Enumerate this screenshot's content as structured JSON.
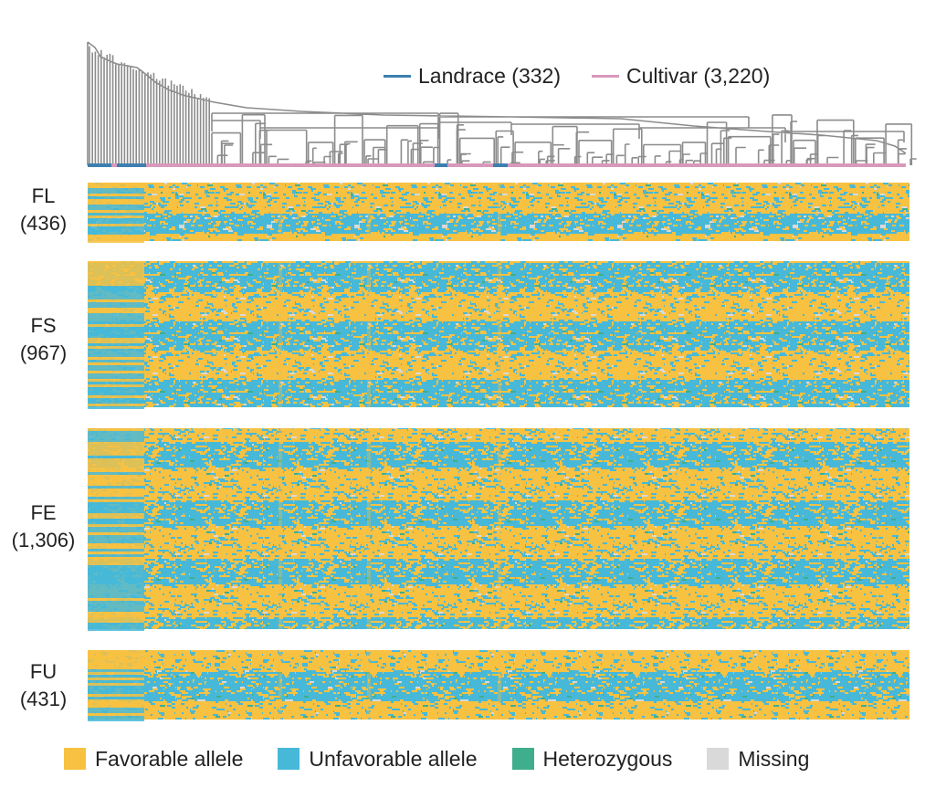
{
  "chart_data": {
    "type": "heatmap",
    "title": "",
    "xlabel": "",
    "ylabel": "",
    "dendrogram": {
      "groups": [
        {
          "name": "Landrace",
          "count": 332,
          "label": "Landrace (332)",
          "color": "#3d7fb0"
        },
        {
          "name": "Cultivar",
          "count": 3220,
          "label": "Cultivar (3,220)",
          "color": "#d899bb"
        }
      ],
      "branch_color": "#8c8c8c"
    },
    "panels": [
      {
        "name": "FL",
        "count": 436,
        "label_line1": "FL",
        "label_line2": "(436)",
        "favorable_top_fraction": 0.65,
        "seed": 11
      },
      {
        "name": "FS",
        "count": 967,
        "label_line1": "FS",
        "label_line2": "(967)",
        "favorable_top_fraction": 0.5,
        "seed": 23
      },
      {
        "name": "FE",
        "count": 1306,
        "label_line1": "FE",
        "label_line2": "(1,306)",
        "favorable_top_fraction": 0.55,
        "seed": 37
      },
      {
        "name": "FU",
        "count": 431,
        "label_line1": "FU",
        "label_line2": "(431)",
        "favorable_top_fraction": 0.5,
        "seed": 53
      }
    ],
    "categories": [
      {
        "name": "Favorable allele",
        "color": "#f7c142"
      },
      {
        "name": "Unfavorable allele",
        "color": "#48b8d8"
      },
      {
        "name": "Heterozygous",
        "color": "#3fae8c"
      },
      {
        "name": "Missing",
        "color": "#d9d9d9"
      }
    ]
  }
}
